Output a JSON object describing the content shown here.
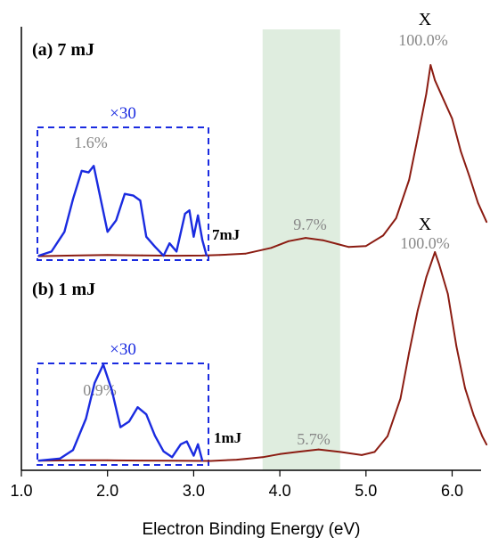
{
  "chart_data": [
    {
      "type": "line",
      "panel_label": "(a) 7 mJ",
      "trace_label": "7mJ",
      "xlabel": "Electron Binding Energy (eV)",
      "xlim": [
        1.0,
        6.4
      ],
      "x_ticks": [
        "1.0",
        "2.0",
        "3.0",
        "4.0",
        "5.0",
        "6.0"
      ],
      "shaded_band_x": [
        3.8,
        4.7
      ],
      "peak_label": "X",
      "annotations": [
        {
          "text": "100.0%",
          "x": 5.75
        },
        {
          "text": "9.7%",
          "x": 4.1
        },
        {
          "text": "1.6%",
          "x": 1.7,
          "inset": true
        }
      ],
      "inset_label": "×30",
      "inset_x_range": [
        1.2,
        3.2
      ],
      "series": [
        {
          "color": "#8b1c12",
          "x": [
            1.2,
            1.6,
            2.0,
            2.4,
            2.8,
            3.1,
            3.3,
            3.6,
            3.9,
            4.1,
            4.3,
            4.5,
            4.8,
            5.0,
            5.2,
            5.35,
            5.5,
            5.6,
            5.7,
            5.75,
            5.8,
            5.9,
            6.0,
            6.1,
            6.2,
            6.3,
            6.4
          ],
          "y": [
            0.2,
            0.5,
            0.8,
            0.6,
            0.4,
            0.5,
            0.8,
            1.5,
            4.5,
            8.0,
            9.7,
            8.5,
            5.0,
            5.5,
            11,
            20,
            40,
            62,
            85,
            100,
            92,
            82,
            72,
            55,
            42,
            28,
            18
          ]
        },
        {
          "color": "#1a2be0",
          "x": [
            1.2,
            1.35,
            1.5,
            1.6,
            1.7,
            1.78,
            1.84,
            1.9,
            2.0,
            2.1,
            2.2,
            2.3,
            2.38,
            2.45,
            2.55,
            2.65,
            2.72,
            2.8,
            2.9,
            2.95,
            3.0,
            3.05,
            3.1,
            3.15
          ],
          "y": [
            0.5,
            3,
            15,
            35,
            52,
            51,
            55,
            40,
            15,
            22,
            38,
            37,
            34,
            12,
            6,
            0.5,
            8,
            3,
            26,
            28,
            12,
            25,
            10,
            0.5
          ]
        }
      ]
    },
    {
      "type": "line",
      "panel_label": "(b) 1 mJ",
      "trace_label": "1mJ",
      "xlabel": "Electron Binding Energy (eV)",
      "xlim": [
        1.0,
        6.4
      ],
      "x_ticks": [
        "1.0",
        "2.0",
        "3.0",
        "4.0",
        "5.0",
        "6.0"
      ],
      "shaded_band_x": [
        3.8,
        4.7
      ],
      "peak_label": "X",
      "annotations": [
        {
          "text": "100.0%",
          "x": 5.8
        },
        {
          "text": "5.7%",
          "x": 4.45
        },
        {
          "text": "0.9%",
          "x": 1.9,
          "inset": true
        }
      ],
      "inset_label": "×30",
      "inset_x_range": [
        1.2,
        3.2
      ],
      "series": [
        {
          "color": "#8b1c12",
          "x": [
            1.2,
            1.6,
            2.0,
            2.4,
            2.8,
            3.2,
            3.5,
            3.8,
            4.0,
            4.2,
            4.45,
            4.7,
            4.95,
            5.1,
            5.25,
            5.4,
            5.5,
            5.6,
            5.7,
            5.8,
            5.85,
            5.95,
            6.05,
            6.15,
            6.25,
            6.35,
            6.4
          ],
          "y": [
            0.3,
            0.5,
            0.5,
            0.4,
            0.3,
            0.2,
            0.8,
            2.0,
            3.5,
            4.5,
            5.7,
            4.5,
            3.0,
            4.5,
            12,
            30,
            52,
            72,
            88,
            100,
            94,
            80,
            55,
            35,
            22,
            12,
            8
          ]
        },
        {
          "color": "#1a2be0",
          "x": [
            1.2,
            1.45,
            1.6,
            1.75,
            1.85,
            1.95,
            2.05,
            2.15,
            2.25,
            2.35,
            2.45,
            2.55,
            2.65,
            2.75,
            2.85,
            2.92,
            3.0,
            3.05,
            3.1
          ],
          "y": [
            0.5,
            2,
            8,
            30,
            55,
            68,
            50,
            24,
            28,
            38,
            33,
            18,
            7,
            3,
            12,
            14,
            4,
            12,
            0.5
          ]
        }
      ]
    }
  ]
}
